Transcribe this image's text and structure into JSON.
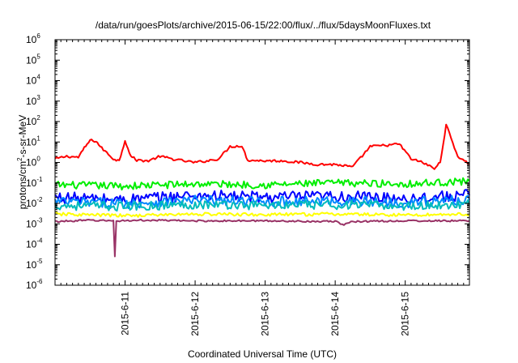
{
  "chart_data": {
    "type": "line",
    "title": "/data/run/goesPlots/archive/2015-06-15/22:00/flux/../flux/5daysMoonFluxes.txt",
    "xlabel": "Coordinated Universal Time (UTC)",
    "ylabel_parts": [
      "protons/cm",
      "2",
      "-s-sr-MeV"
    ],
    "yscale": "log",
    "ylim": [
      1e-06,
      1000000.0
    ],
    "y_ticks": [
      {
        "base": "10",
        "exp": "-6"
      },
      {
        "base": "10",
        "exp": "-5"
      },
      {
        "base": "10",
        "exp": "-4"
      },
      {
        "base": "10",
        "exp": "-3"
      },
      {
        "base": "10",
        "exp": "-2"
      },
      {
        "base": "10",
        "exp": "-1"
      },
      {
        "base": "10",
        "exp": "0"
      },
      {
        "base": "10",
        "exp": "1"
      },
      {
        "base": "10",
        "exp": "2"
      },
      {
        "base": "10",
        "exp": "3"
      },
      {
        "base": "10",
        "exp": "4"
      },
      {
        "base": "10",
        "exp": "5"
      },
      {
        "base": "10",
        "exp": "6"
      }
    ],
    "xlim": [
      "2015-06-10T00:00",
      "2015-06-15T22:00"
    ],
    "x_ticks": [
      "2015-6-11",
      "2015-6-12",
      "2015-6-13",
      "2015-6-14",
      "2015-6-15"
    ],
    "grid": false,
    "legend": "none",
    "series": [
      {
        "color": "#ff0000",
        "x": [
          "2015-06-10T00:00",
          "2015-06-10T04:00",
          "2015-06-10T08:00",
          "2015-06-10T10:00",
          "2015-06-10T12:00",
          "2015-06-10T14:00",
          "2015-06-10T16:00",
          "2015-06-10T20:00",
          "2015-06-10T22:00",
          "2015-06-11T00:00",
          "2015-06-11T02:00",
          "2015-06-11T04:00",
          "2015-06-11T08:00",
          "2015-06-11T12:00",
          "2015-06-11T16:00",
          "2015-06-11T20:00",
          "2015-06-12T00:00",
          "2015-06-12T04:00",
          "2015-06-12T08:00",
          "2015-06-12T12:00",
          "2015-06-12T16:00",
          "2015-06-12T18:00",
          "2015-06-13T00:00",
          "2015-06-13T06:00",
          "2015-06-13T12:00",
          "2015-06-13T18:00",
          "2015-06-14T00:00",
          "2015-06-14T06:00",
          "2015-06-14T12:00",
          "2015-06-14T18:00",
          "2015-06-14T22:00",
          "2015-06-15T02:00",
          "2015-06-15T06:00",
          "2015-06-15T10:00",
          "2015-06-15T12:00",
          "2015-06-15T14:00",
          "2015-06-15T18:00",
          "2015-06-15T22:00"
        ],
        "values": [
          1.5,
          2.0,
          1.8,
          5.0,
          12,
          11,
          5.0,
          1.5,
          1.2,
          12,
          2.0,
          1.3,
          1.2,
          2.0,
          1.5,
          1.2,
          1.0,
          1.2,
          1.5,
          6.0,
          6.5,
          1.3,
          1.2,
          1.2,
          1.0,
          0.8,
          0.8,
          0.6,
          6.0,
          7.0,
          8.0,
          1.5,
          1.0,
          0.5,
          1.0,
          70,
          2.0,
          0.8
        ]
      },
      {
        "color": "#00ee00",
        "x": [
          "2015-06-10T00:00",
          "2015-06-11T00:00",
          "2015-06-12T00:00",
          "2015-06-13T00:00",
          "2015-06-14T00:00",
          "2015-06-15T00:00",
          "2015-06-15T22:00"
        ],
        "values": [
          0.08,
          0.07,
          0.09,
          0.08,
          0.1,
          0.09,
          0.12
        ]
      },
      {
        "color": "#0000ff",
        "x": [
          "2015-06-10T00:00",
          "2015-06-11T00:00",
          "2015-06-12T00:00",
          "2015-06-13T00:00",
          "2015-06-14T00:00",
          "2015-06-15T00:00",
          "2015-06-15T22:00"
        ],
        "values": [
          0.02,
          0.015,
          0.025,
          0.02,
          0.022,
          0.018,
          0.025
        ]
      },
      {
        "color": "#0088ff",
        "x": [
          "2015-06-10T00:00",
          "2015-06-11T00:00",
          "2015-06-12T00:00",
          "2015-06-13T00:00",
          "2015-06-14T00:00",
          "2015-06-15T00:00",
          "2015-06-15T22:00"
        ],
        "values": [
          0.012,
          0.01,
          0.014,
          0.012,
          0.013,
          0.011,
          0.015
        ]
      },
      {
        "color": "#00bbbb",
        "x": [
          "2015-06-10T00:00",
          "2015-06-11T00:00",
          "2015-06-12T00:00",
          "2015-06-13T00:00",
          "2015-06-14T00:00",
          "2015-06-15T00:00",
          "2015-06-15T22:00"
        ],
        "values": [
          0.008,
          0.007,
          0.009,
          0.008,
          0.0085,
          0.0075,
          0.009
        ]
      },
      {
        "color": "#ffff00",
        "x": [
          "2015-06-10T00:00",
          "2015-06-11T00:00",
          "2015-06-12T00:00",
          "2015-06-13T00:00",
          "2015-06-14T00:00",
          "2015-06-15T00:00",
          "2015-06-15T22:00"
        ],
        "values": [
          0.003,
          0.0025,
          0.003,
          0.0028,
          0.003,
          0.0027,
          0.003
        ]
      },
      {
        "color": "#993366",
        "x": [
          "2015-06-10T00:00",
          "2015-06-10T12:00",
          "2015-06-10T20:00",
          "2015-06-10T20:30",
          "2015-06-10T21:00",
          "2015-06-11T06:00",
          "2015-06-12T00:00",
          "2015-06-13T00:00",
          "2015-06-14T00:00",
          "2015-06-14T03:00",
          "2015-06-14T06:00",
          "2015-06-15T00:00",
          "2015-06-15T22:00"
        ],
        "values": [
          0.0013,
          0.0015,
          0.0014,
          2.5e-05,
          0.0014,
          0.0015,
          0.0014,
          0.0014,
          0.0013,
          0.0009,
          0.0013,
          0.0014,
          0.0014
        ]
      }
    ]
  }
}
